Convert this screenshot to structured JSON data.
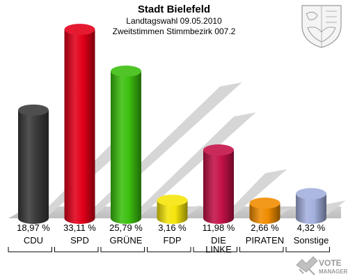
{
  "header": {
    "title": "Stadt Bielefeld",
    "subtitle1": "Landtagswahl 09.05.2010",
    "subtitle2": "Zweitstimmen Stimmbezirk 007.2"
  },
  "branding": {
    "logo_line1": "VOTE",
    "logo_line2": "MANAGER",
    "crest_icon": "coat-of-arms-icon"
  },
  "chart_data": {
    "type": "bar",
    "title": "Stadt Bielefeld",
    "subtitle": "Landtagswahl 09.05.2010 — Zweitstimmen Stimmbezirk 007.2",
    "unit": "%",
    "categories": [
      "CDU",
      "SPD",
      "GRÜNE",
      "FDP",
      "DIE LINKE",
      "PIRATEN",
      "Sonstige"
    ],
    "values": [
      18.97,
      33.11,
      25.79,
      3.16,
      11.98,
      2.66,
      4.32
    ],
    "labels": [
      "18,97 %",
      "33,11 %",
      "25,79 %",
      "3,16 %",
      "11,98 %",
      "2,66 %",
      "4,32 %"
    ],
    "colors": [
      "#3a3a3a",
      "#e2001a",
      "#3cbf0f",
      "#f5e50a",
      "#c41248",
      "#f08c00",
      "#a4b0de"
    ],
    "ylim": [
      0,
      35
    ],
    "grid": false,
    "legend": "none"
  }
}
